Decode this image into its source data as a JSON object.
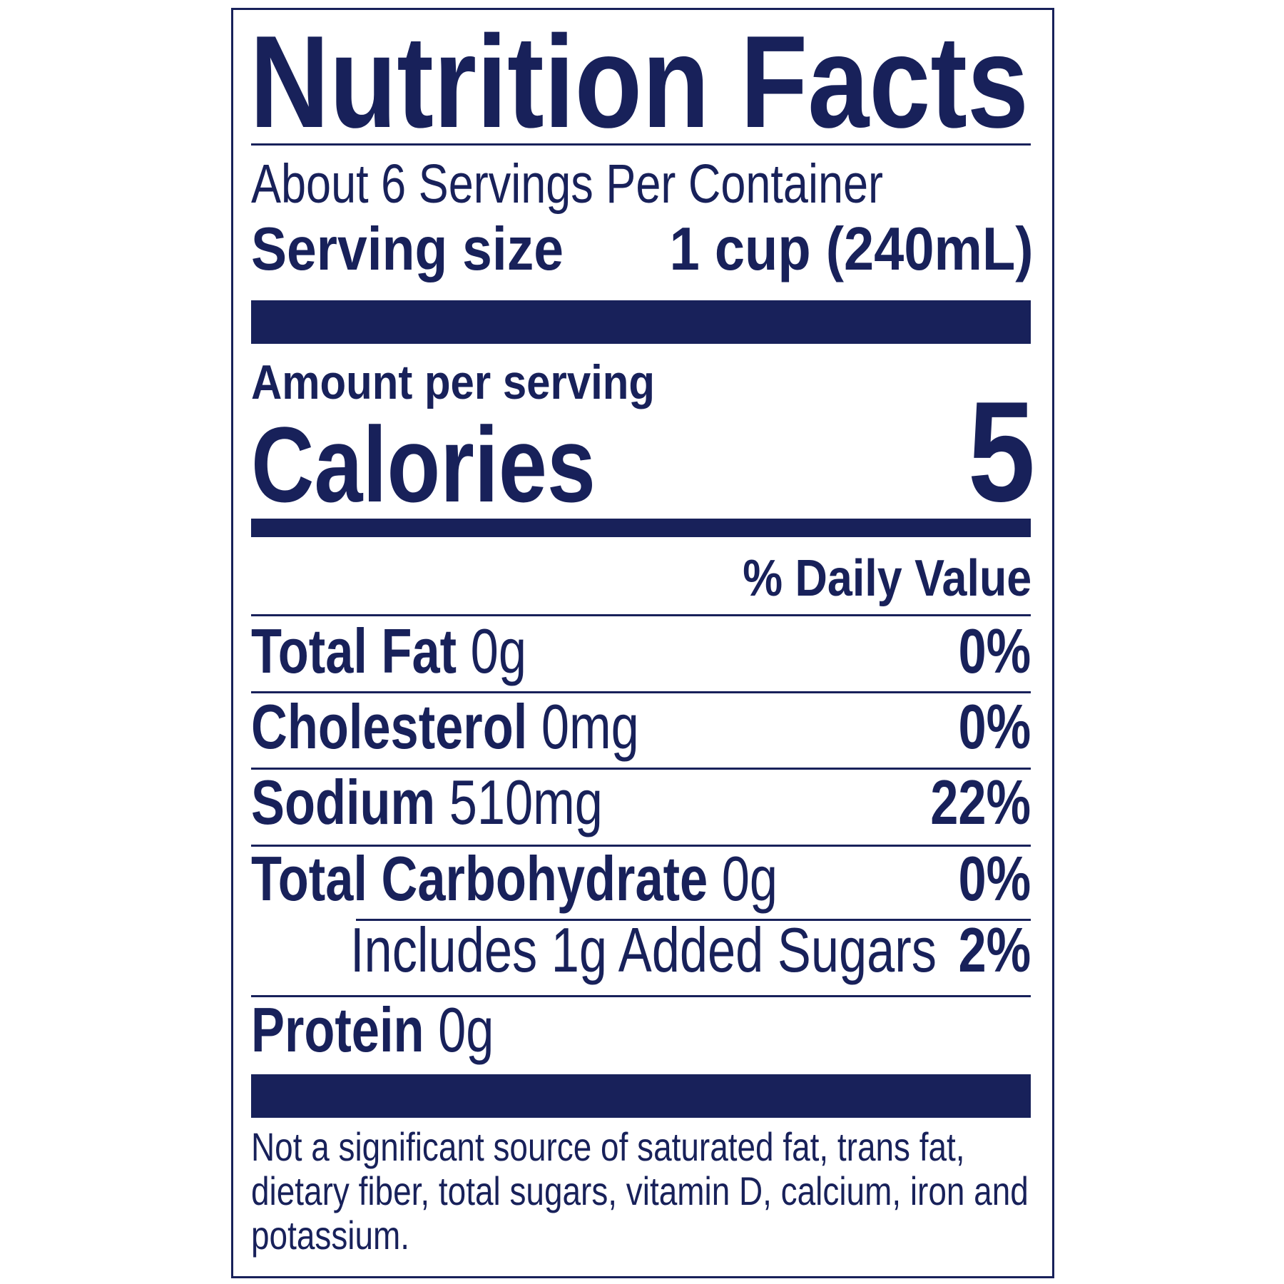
{
  "title": "Nutrition Facts",
  "servings_per_container": "About 6 Servings Per Container",
  "serving_size": {
    "label": "Serving size",
    "value": "1 cup (240mL)"
  },
  "amount_per_serving": "Amount per serving",
  "calories": {
    "label": "Calories",
    "value": "5"
  },
  "daily_value_header": "% Daily Value",
  "nutrients": [
    {
      "name": "Total Fat",
      "amount": "0g",
      "dv": "0%"
    },
    {
      "name": "Cholesterol",
      "amount": "0mg",
      "dv": "0%"
    },
    {
      "name": "Sodium",
      "amount": "510mg",
      "dv": "22%"
    },
    {
      "name": "Total Carbohydrate",
      "amount": "0g",
      "dv": "0%"
    },
    {
      "name": "Includes 1g Added Sugars",
      "amount": "",
      "dv": "2%"
    },
    {
      "name": "Protein",
      "amount": "0g",
      "dv": ""
    }
  ],
  "footnote": "Not a significant source of saturated fat, trans fat, dietary fiber, total sugars, vitamin D, calcium, iron and potassium.",
  "colors": {
    "ink": "#18215a",
    "background": "#ffffff"
  }
}
